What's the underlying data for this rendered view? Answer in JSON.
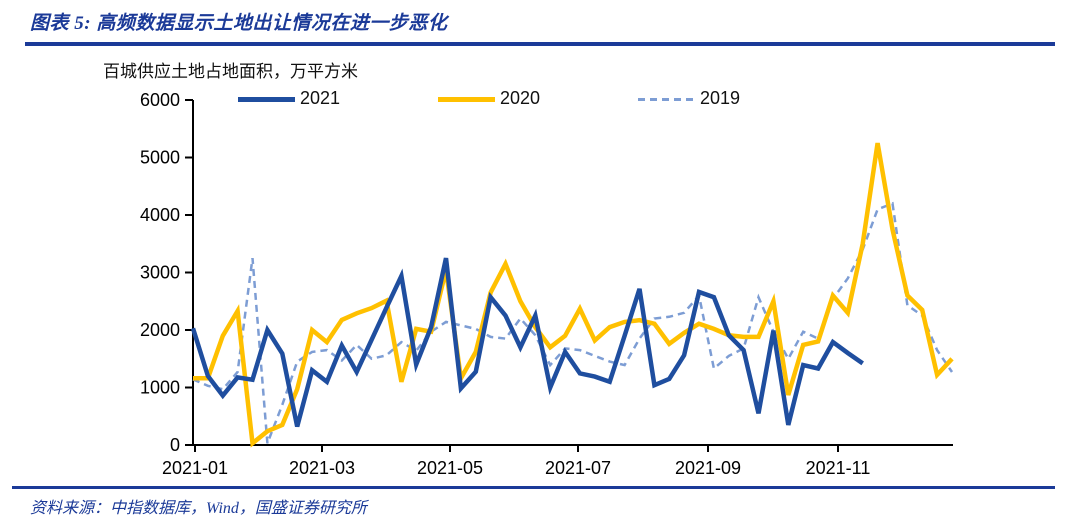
{
  "header": {
    "title": "图表 5: 高频数据显示土地出让情况在进一步恶化"
  },
  "chart": {
    "subtitle": "百城供应土地占地面积，万平方米"
  },
  "legend": {
    "items": [
      {
        "label": "2021",
        "color": "#1F4E9F",
        "style": "solid"
      },
      {
        "label": "2020",
        "color": "#FFC000",
        "style": "solid"
      },
      {
        "label": "2019",
        "color": "#7D9DD4",
        "style": "dashed"
      }
    ]
  },
  "footer": {
    "source": "资料来源：中指数据库，Wind，国盛证券研究所"
  },
  "chart_data": {
    "type": "line",
    "title": "百城供应土地占地面积，万平方米",
    "x_unit": "week",
    "xlabel": "",
    "ylabel": "万平方米",
    "ylim": [
      0,
      6000
    ],
    "y_tick_interval": 1000,
    "y_tick_labels": [
      "0",
      "1000",
      "2000",
      "3000",
      "4000",
      "5000",
      "6000"
    ],
    "x_tick_labels": [
      "2021-01",
      "2021-03",
      "2021-05",
      "2021-07",
      "2021-09",
      "2021-11"
    ],
    "grid": false,
    "legend_position": "top",
    "series": [
      {
        "name": "2021",
        "color": "#1F4E9F",
        "style": "solid",
        "values": [
          2030,
          1200,
          860,
          1175,
          1135,
          2000,
          1590,
          320,
          1300,
          1100,
          1730,
          1270,
          1830,
          2390,
          2940,
          1400,
          2050,
          3250,
          985,
          1275,
          2570,
          2250,
          1700,
          2250,
          1000,
          1620,
          1245,
          1190,
          1100,
          1900,
          2715,
          1040,
          1150,
          1560,
          2660,
          2570,
          1910,
          1650,
          550,
          1990,
          350,
          1390,
          1330,
          1790,
          1600,
          1420
        ]
      },
      {
        "name": "2020",
        "color": "#FFC000",
        "style": "solid",
        "values": [
          1160,
          1160,
          1900,
          2330,
          30,
          240,
          350,
          970,
          2000,
          1790,
          2175,
          2290,
          2380,
          2510,
          1100,
          2020,
          1970,
          3050,
          1160,
          1620,
          2650,
          3150,
          2500,
          2050,
          1700,
          1900,
          2370,
          1820,
          2050,
          2140,
          2170,
          2110,
          1760,
          1950,
          2110,
          2020,
          1910,
          1880,
          1880,
          2500,
          870,
          1740,
          1800,
          2600,
          2300,
          3500,
          5250,
          3750,
          2600,
          2350,
          1220,
          1500
        ]
      },
      {
        "name": "2019",
        "color": "#7D9DD4",
        "style": "dashed",
        "values": [
          1140,
          1030,
          970,
          1270,
          3250,
          30,
          700,
          1450,
          1620,
          1650,
          1470,
          1740,
          1500,
          1560,
          1790,
          1640,
          1970,
          2140,
          2080,
          2020,
          1880,
          1850,
          2200,
          1910,
          1390,
          1680,
          1650,
          1550,
          1450,
          1390,
          1850,
          2200,
          2230,
          2300,
          2600,
          1330,
          1550,
          1680,
          2570,
          1970,
          1500,
          1970,
          1850,
          2540,
          2900,
          3400,
          4100,
          4200,
          2430,
          2250,
          1650,
          1270
        ]
      }
    ]
  }
}
